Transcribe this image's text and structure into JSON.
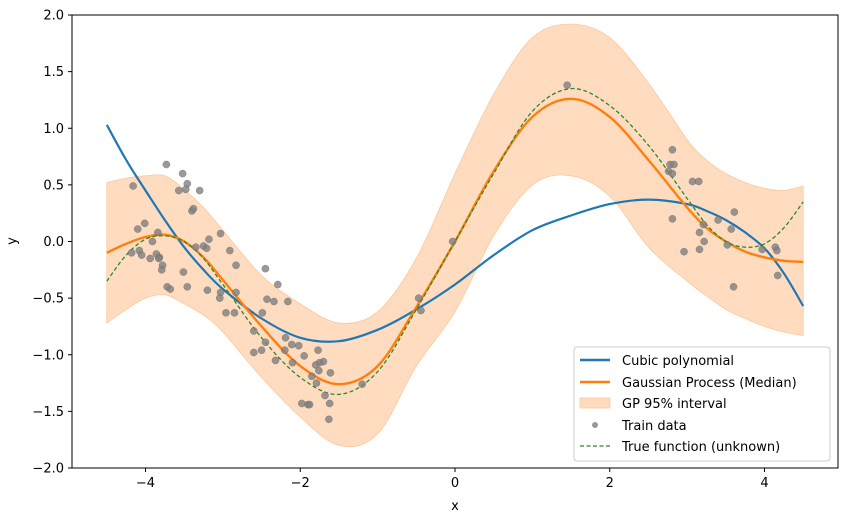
{
  "chart_data": {
    "type": "line",
    "title": "",
    "xlabel": "x",
    "ylabel": "y",
    "xlim": [
      -4.95,
      4.95
    ],
    "ylim": [
      -2.0,
      2.0
    ],
    "xticks": [
      -4,
      -2,
      0,
      2,
      4
    ],
    "xtick_labels": [
      "−4",
      "−2",
      "0",
      "2",
      "4"
    ],
    "yticks": [
      -2.0,
      -1.5,
      -1.0,
      -0.5,
      0.0,
      0.5,
      1.0,
      1.5,
      2.0
    ],
    "ytick_labels": [
      "−2.0",
      "−1.5",
      "−1.0",
      "−0.5",
      "0.0",
      "0.5",
      "1.0",
      "1.5",
      "2.0"
    ],
    "grid": false,
    "legend_position": "lower-right",
    "colors": {
      "cubic": "#1f77b4",
      "gp_median": "#ff7f0e",
      "gp_interval": "#ffdcbf",
      "train": "#808080",
      "true_function": "#2a8a2a"
    },
    "legend": [
      {
        "key": "cubic",
        "label": "Cubic polynomial"
      },
      {
        "key": "gp_median",
        "label": "Gaussian Process (Median)"
      },
      {
        "key": "gp_interval",
        "label": "GP 95% interval"
      },
      {
        "key": "train",
        "label": "Train data"
      },
      {
        "key": "true_function",
        "label": "True function (unknown)"
      }
    ],
    "series": {
      "x": [
        -4.5,
        -4.25,
        -4.0,
        -3.75,
        -3.5,
        -3.25,
        -3.0,
        -2.5,
        -2.0,
        -1.5,
        -1.0,
        -0.5,
        0.0,
        0.5,
        1.0,
        1.5,
        2.0,
        2.5,
        3.0,
        3.25,
        3.5,
        3.75,
        4.0,
        4.25,
        4.5
      ],
      "cubic": [
        1.03,
        0.72,
        0.45,
        0.19,
        -0.05,
        -0.25,
        -0.42,
        -0.68,
        -0.85,
        -0.88,
        -0.78,
        -0.6,
        -0.38,
        -0.12,
        0.1,
        0.23,
        0.33,
        0.37,
        0.33,
        0.27,
        0.19,
        0.08,
        -0.06,
        -0.28,
        -0.57
      ],
      "gp_median": [
        -0.1,
        -0.02,
        0.04,
        0.06,
        0.0,
        -0.14,
        -0.34,
        -0.75,
        -1.1,
        -1.26,
        -1.1,
        -0.58,
        0.0,
        0.62,
        1.1,
        1.26,
        1.1,
        0.72,
        0.3,
        0.12,
        0.0,
        -0.09,
        -0.14,
        -0.17,
        -0.18
      ],
      "true_function": [
        -0.35,
        -0.12,
        0.02,
        0.05,
        0.0,
        -0.15,
        -0.38,
        -0.85,
        -1.2,
        -1.35,
        -1.15,
        -0.6,
        0.0,
        0.6,
        1.15,
        1.35,
        1.2,
        0.85,
        0.38,
        0.15,
        0.0,
        -0.05,
        -0.02,
        0.12,
        0.35
      ],
      "gp_upper": [
        0.52,
        0.56,
        0.58,
        0.58,
        0.46,
        0.3,
        0.1,
        -0.3,
        -0.55,
        -0.72,
        -0.62,
        -0.15,
        0.6,
        1.3,
        1.8,
        1.92,
        1.8,
        1.4,
        0.9,
        0.72,
        0.6,
        0.52,
        0.47,
        0.45,
        0.49
      ],
      "gp_lower": [
        -0.72,
        -0.6,
        -0.5,
        -0.47,
        -0.55,
        -0.65,
        -0.8,
        -1.2,
        -1.55,
        -1.8,
        -1.7,
        -1.1,
        -0.62,
        0.05,
        0.5,
        0.58,
        0.4,
        -0.05,
        -0.35,
        -0.48,
        -0.6,
        -0.68,
        -0.75,
        -0.8,
        -0.83
      ]
    },
    "train_data": [
      [
        -3.73,
        0.68
      ],
      [
        -3.52,
        0.6
      ],
      [
        -3.46,
        0.51
      ],
      [
        -3.57,
        0.45
      ],
      [
        -3.48,
        0.46
      ],
      [
        -3.3,
        0.45
      ],
      [
        -4.16,
        0.49
      ],
      [
        -3.4,
        0.27
      ],
      [
        -3.38,
        0.29
      ],
      [
        -4.01,
        0.16
      ],
      [
        -4.1,
        0.11
      ],
      [
        -3.03,
        0.07
      ],
      [
        -3.18,
        0.02
      ],
      [
        -3.84,
        0.08
      ],
      [
        -3.91,
        0.0
      ],
      [
        -3.25,
        -0.04
      ],
      [
        -3.21,
        -0.06
      ],
      [
        -3.35,
        -0.05
      ],
      [
        -2.91,
        -0.08
      ],
      [
        -4.18,
        -0.1
      ],
      [
        -4.08,
        -0.08
      ],
      [
        -4.05,
        -0.12
      ],
      [
        -3.94,
        -0.15
      ],
      [
        -3.86,
        -0.11
      ],
      [
        -3.82,
        -0.14
      ],
      [
        -3.83,
        -0.15
      ],
      [
        -3.78,
        -0.21
      ],
      [
        -3.79,
        -0.25
      ],
      [
        -3.51,
        -0.27
      ],
      [
        -2.83,
        -0.21
      ],
      [
        -2.45,
        -0.24
      ],
      [
        -3.72,
        -0.4
      ],
      [
        -3.68,
        -0.42
      ],
      [
        -3.46,
        -0.4
      ],
      [
        -3.2,
        -0.43
      ],
      [
        -3.03,
        -0.45
      ],
      [
        -3.04,
        -0.5
      ],
      [
        -2.83,
        -0.45
      ],
      [
        -2.29,
        -0.38
      ],
      [
        -2.43,
        -0.51
      ],
      [
        -2.34,
        -0.53
      ],
      [
        -2.16,
        -0.53
      ],
      [
        -2.96,
        -0.63
      ],
      [
        -2.85,
        -0.63
      ],
      [
        -2.49,
        -0.63
      ],
      [
        -2.6,
        -0.79
      ],
      [
        -2.45,
        -0.89
      ],
      [
        -2.6,
        -0.98
      ],
      [
        -2.5,
        -0.96
      ],
      [
        -2.32,
        -1.05
      ],
      [
        -2.2,
        -0.96
      ],
      [
        -2.19,
        -0.85
      ],
      [
        -2.11,
        -0.91
      ],
      [
        -2.02,
        -0.92
      ],
      [
        -1.95,
        -1.01
      ],
      [
        -2.1,
        -1.07
      ],
      [
        -1.77,
        -0.96
      ],
      [
        -1.7,
        -1.06
      ],
      [
        -1.75,
        -1.07
      ],
      [
        -1.8,
        -1.09
      ],
      [
        -1.76,
        -1.14
      ],
      [
        -1.61,
        -1.16
      ],
      [
        -1.85,
        -1.19
      ],
      [
        -1.79,
        -1.25
      ],
      [
        -1.68,
        -1.36
      ],
      [
        -1.98,
        -1.43
      ],
      [
        -1.9,
        -1.44
      ],
      [
        -1.88,
        -1.44
      ],
      [
        -1.62,
        -1.43
      ],
      [
        -1.63,
        -1.57
      ],
      [
        -1.2,
        -1.26
      ],
      [
        -0.03,
        0.0
      ],
      [
        -0.47,
        -0.5
      ],
      [
        -0.44,
        -0.61
      ],
      [
        1.45,
        1.38
      ],
      [
        2.81,
        0.81
      ],
      [
        2.78,
        0.68
      ],
      [
        2.83,
        0.68
      ],
      [
        2.76,
        0.62
      ],
      [
        2.81,
        0.6
      ],
      [
        3.07,
        0.53
      ],
      [
        3.15,
        0.53
      ],
      [
        3.61,
        0.26
      ],
      [
        2.81,
        0.2
      ],
      [
        3.4,
        0.19
      ],
      [
        3.21,
        0.15
      ],
      [
        3.57,
        0.11
      ],
      [
        3.16,
        0.08
      ],
      [
        3.22,
        0.0
      ],
      [
        3.16,
        -0.07
      ],
      [
        2.96,
        -0.09
      ],
      [
        3.52,
        -0.03
      ],
      [
        3.97,
        -0.07
      ],
      [
        4.14,
        -0.05
      ],
      [
        4.16,
        -0.08
      ],
      [
        4.17,
        -0.3
      ],
      [
        3.6,
        -0.4
      ]
    ]
  }
}
